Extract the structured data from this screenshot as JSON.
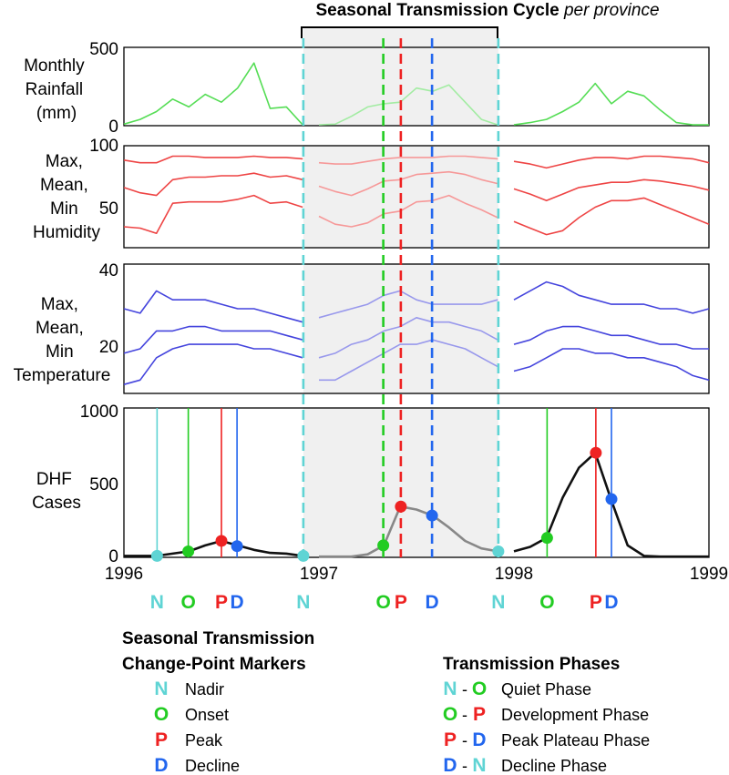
{
  "colors": {
    "nadir": "#5fd4d4",
    "onset": "#22cc22",
    "peak": "#ee2222",
    "decline": "#2266ee",
    "rainfall": "#55dd55",
    "humidity": "#ee4444",
    "temperature": "#4444dd",
    "cases": "#111111",
    "shade": "#f0f0f0"
  },
  "header": {
    "title_main": "Seasonal Transmission Cycle",
    "title_italic": "per province"
  },
  "panels": {
    "rainfall": {
      "label_lines": [
        "Monthly",
        "Rainfall",
        "(mm)"
      ],
      "ticks": [
        "500",
        "0"
      ]
    },
    "humidity": {
      "label_lines": [
        "Max,",
        "Mean,",
        "Min",
        "Humidity"
      ],
      "ticks": [
        "100",
        "50"
      ]
    },
    "temperature": {
      "label_lines": [
        "Max,",
        "Mean,",
        "Min",
        "Temperature"
      ],
      "ticks": [
        "40",
        "20"
      ]
    },
    "cases": {
      "label_lines": [
        "DHF",
        "Cases"
      ],
      "ticks": [
        "1000",
        "500",
        "0"
      ]
    }
  },
  "x_axis": {
    "ticks": [
      "1996",
      "1997",
      "1998",
      "1999"
    ]
  },
  "marker_letters": [
    {
      "letter": "N",
      "type": "nadir",
      "x": 1996.17
    },
    {
      "letter": "O",
      "type": "onset",
      "x": 1996.33
    },
    {
      "letter": "P",
      "type": "peak",
      "x": 1996.5
    },
    {
      "letter": "D",
      "type": "decline",
      "x": 1996.58
    },
    {
      "letter": "N",
      "type": "nadir",
      "x": 1996.92
    },
    {
      "letter": "O",
      "type": "onset",
      "x": 1997.33
    },
    {
      "letter": "P",
      "type": "peak",
      "x": 1997.42
    },
    {
      "letter": "D",
      "type": "decline",
      "x": 1997.58
    },
    {
      "letter": "N",
      "type": "nadir",
      "x": 1997.92
    },
    {
      "letter": "O",
      "type": "onset",
      "x": 1998.17
    },
    {
      "letter": "P",
      "type": "peak",
      "x": 1998.42
    },
    {
      "letter": "D",
      "type": "decline",
      "x": 1998.5
    }
  ],
  "legend_markers": {
    "heading_lines": [
      "Seasonal Transmission",
      "Change-Point Markers"
    ],
    "items": [
      {
        "letter": "N",
        "type": "nadir",
        "label": "Nadir"
      },
      {
        "letter": "O",
        "type": "onset",
        "label": "Onset"
      },
      {
        "letter": "P",
        "type": "peak",
        "label": "Peak"
      },
      {
        "letter": "D",
        "type": "decline",
        "label": "Decline"
      }
    ]
  },
  "legend_phases": {
    "heading": "Transmission Phases",
    "items": [
      {
        "from": "N",
        "from_type": "nadir",
        "to": "O",
        "to_type": "onset",
        "label": "Quiet Phase"
      },
      {
        "from": "O",
        "from_type": "onset",
        "to": "P",
        "to_type": "peak",
        "label": "Development Phase"
      },
      {
        "from": "P",
        "from_type": "peak",
        "to": "D",
        "to_type": "decline",
        "label": "Peak Plateau Phase"
      },
      {
        "from": "D",
        "from_type": "decline",
        "to": "N",
        "to_type": "nadir",
        "label": "Decline Phase"
      }
    ]
  },
  "chart_data": [
    {
      "type": "line",
      "panel": "rainfall",
      "ylabel": "Monthly Rainfall (mm)",
      "ylim": [
        0,
        500
      ],
      "x": [
        1996.0,
        1996.083,
        1996.167,
        1996.25,
        1996.333,
        1996.417,
        1996.5,
        1996.583,
        1996.667,
        1996.75,
        1996.833,
        1996.917,
        1997.0,
        1997.083,
        1997.167,
        1997.25,
        1997.333,
        1997.417,
        1997.5,
        1997.583,
        1997.667,
        1997.75,
        1997.833,
        1997.917,
        1998.0,
        1998.083,
        1998.167,
        1998.25,
        1998.333,
        1998.417,
        1998.5,
        1998.583,
        1998.667,
        1998.75,
        1998.833,
        1998.917,
        1999.0
      ],
      "series": [
        {
          "values": [
            10,
            40,
            90,
            170,
            120,
            200,
            150,
            240,
            400,
            110,
            120,
            5,
            5,
            10,
            60,
            120,
            140,
            150,
            240,
            220,
            260,
            150,
            40,
            5,
            5,
            20,
            40,
            90,
            150,
            270,
            140,
            220,
            190,
            100,
            20,
            5,
            5
          ]
        }
      ]
    },
    {
      "type": "line",
      "panel": "humidity",
      "ylabel": "Max, Mean, Min Humidity",
      "ylim": [
        22,
        100
      ],
      "x": [
        1996.0,
        1996.083,
        1996.167,
        1996.25,
        1996.333,
        1996.417,
        1996.5,
        1996.583,
        1996.667,
        1996.75,
        1996.833,
        1996.917,
        1997.0,
        1997.083,
        1997.167,
        1997.25,
        1997.333,
        1997.417,
        1997.5,
        1997.583,
        1997.667,
        1997.75,
        1997.833,
        1997.917,
        1998.0,
        1998.083,
        1998.167,
        1998.25,
        1998.333,
        1998.417,
        1998.5,
        1998.583,
        1998.667,
        1998.75,
        1998.833,
        1998.917,
        1999.0
      ],
      "series": [
        {
          "values": [
            89,
            87,
            87,
            92,
            92,
            91,
            91,
            91,
            92,
            91,
            91,
            90,
            87,
            86,
            86,
            88,
            90,
            91,
            91,
            91,
            92,
            92,
            91,
            90,
            88,
            86,
            83,
            86,
            89,
            91,
            91,
            90,
            92,
            92,
            91,
            90,
            87
          ]
        },
        {
          "values": [
            68,
            64,
            62,
            74,
            76,
            76,
            77,
            77,
            79,
            76,
            77,
            74,
            69,
            65,
            62,
            67,
            73,
            74,
            78,
            79,
            80,
            78,
            74,
            71,
            67,
            63,
            58,
            63,
            68,
            70,
            72,
            72,
            74,
            73,
            71,
            69,
            66
          ]
        },
        {
          "values": [
            38,
            37,
            33,
            56,
            57,
            57,
            57,
            59,
            62,
            56,
            57,
            53,
            46,
            40,
            38,
            41,
            48,
            50,
            57,
            58,
            62,
            56,
            51,
            45,
            42,
            37,
            32,
            35,
            45,
            53,
            58,
            58,
            60,
            55,
            50,
            45,
            40
          ]
        }
      ]
    },
    {
      "type": "line",
      "panel": "temperature",
      "ylabel": "Max, Mean, Min Temperature",
      "ylim": [
        12,
        41
      ],
      "x": [
        1996.0,
        1996.083,
        1996.167,
        1996.25,
        1996.333,
        1996.417,
        1996.5,
        1996.583,
        1996.667,
        1996.75,
        1996.833,
        1996.917,
        1997.0,
        1997.083,
        1997.167,
        1997.25,
        1997.333,
        1997.417,
        1997.5,
        1997.583,
        1997.667,
        1997.75,
        1997.833,
        1997.917,
        1998.0,
        1998.083,
        1998.167,
        1998.25,
        1998.333,
        1998.417,
        1998.5,
        1998.583,
        1998.667,
        1998.75,
        1998.833,
        1998.917,
        1999.0
      ],
      "series": [
        {
          "values": [
            31,
            30,
            35,
            33,
            33,
            33,
            32,
            31,
            31,
            30,
            29,
            28,
            29,
            30,
            31,
            32,
            34,
            35,
            33,
            32,
            32,
            32,
            32,
            33,
            33,
            35,
            37,
            36,
            34,
            33,
            32,
            32,
            32,
            31,
            31,
            30,
            31
          ]
        },
        {
          "values": [
            21,
            22,
            26,
            26,
            27,
            27,
            26,
            26,
            26,
            26,
            25,
            24,
            20,
            21,
            23,
            24,
            26,
            27,
            29,
            28,
            28,
            27,
            26,
            24,
            23,
            24,
            26,
            27,
            27,
            26,
            25,
            25,
            24,
            23,
            23,
            22,
            22
          ]
        },
        {
          "values": [
            14,
            15,
            20,
            22,
            23,
            23,
            23,
            23,
            22,
            22,
            21,
            20,
            15,
            15,
            17,
            19,
            21,
            23,
            23,
            24,
            23,
            22,
            20,
            18,
            17,
            18,
            20,
            22,
            22,
            21,
            21,
            20,
            20,
            19,
            18,
            16,
            15
          ]
        }
      ]
    },
    {
      "type": "line",
      "panel": "cases",
      "ylabel": "DHF Cases",
      "ylim": [
        0,
        1000
      ],
      "xlim": [
        1996,
        1999
      ],
      "x": [
        1996.0,
        1996.083,
        1996.167,
        1996.25,
        1996.333,
        1996.417,
        1996.5,
        1996.583,
        1996.667,
        1996.75,
        1996.833,
        1996.917,
        1997.0,
        1997.083,
        1997.167,
        1997.25,
        1997.333,
        1997.417,
        1997.5,
        1997.583,
        1997.667,
        1997.75,
        1997.833,
        1997.917,
        1998.0,
        1998.083,
        1998.167,
        1998.25,
        1998.333,
        1998.417,
        1998.5,
        1998.583,
        1998.667,
        1998.75,
        1998.833,
        1998.917,
        1999.0
      ],
      "series": [
        {
          "values": [
            10,
            10,
            10,
            25,
            40,
            80,
            110,
            80,
            50,
            30,
            25,
            10,
            5,
            5,
            5,
            20,
            80,
            340,
            320,
            280,
            200,
            110,
            60,
            40,
            40,
            70,
            130,
            400,
            600,
            700,
            380,
            80,
            10,
            5,
            5,
            5,
            5
          ]
        }
      ],
      "change_points": [
        {
          "type": "nadir",
          "x": 1996.17,
          "y": 10
        },
        {
          "type": "onset",
          "x": 1996.33,
          "y": 40
        },
        {
          "type": "peak",
          "x": 1996.5,
          "y": 110
        },
        {
          "type": "decline",
          "x": 1996.58,
          "y": 75
        },
        {
          "type": "nadir",
          "x": 1996.92,
          "y": 10
        },
        {
          "type": "onset",
          "x": 1997.33,
          "y": 80
        },
        {
          "type": "peak",
          "x": 1997.42,
          "y": 340
        },
        {
          "type": "decline",
          "x": 1997.58,
          "y": 280
        },
        {
          "type": "nadir",
          "x": 1997.92,
          "y": 40
        },
        {
          "type": "onset",
          "x": 1998.17,
          "y": 130
        },
        {
          "type": "peak",
          "x": 1998.42,
          "y": 700
        },
        {
          "type": "decline",
          "x": 1998.5,
          "y": 390
        }
      ]
    }
  ]
}
